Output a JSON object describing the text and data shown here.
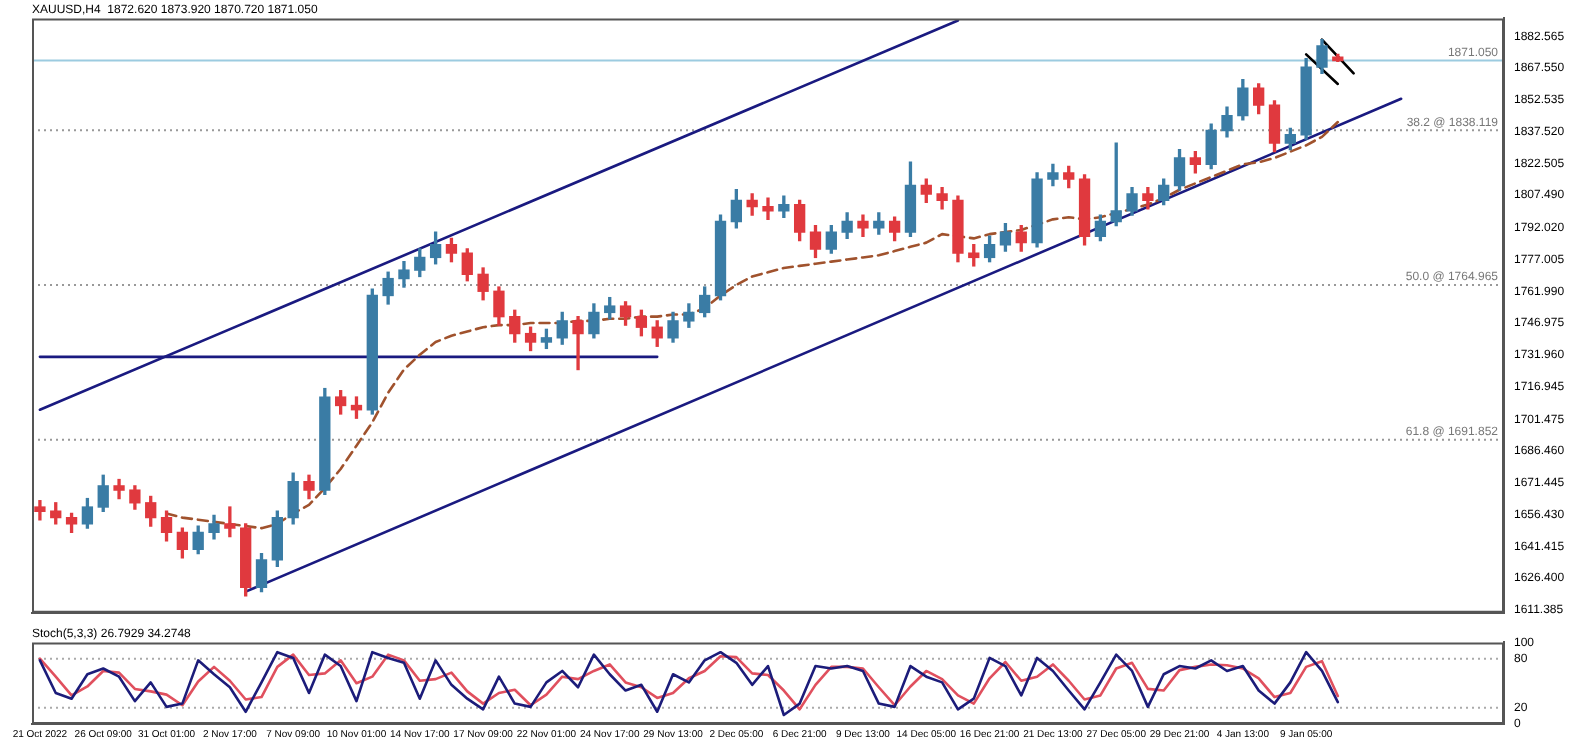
{
  "chart_data": [
    {
      "type": "candlestick",
      "title": "XAUUSD,H4  1872.620 1873.920 1870.720 1871.050",
      "categories": [
        null,
        null,
        null,
        null,
        null,
        null,
        null,
        null,
        null,
        null,
        null,
        null,
        null,
        null,
        null,
        null,
        null,
        null,
        null,
        null,
        null,
        null,
        null,
        null,
        null,
        null,
        null,
        null,
        null,
        null,
        null,
        null,
        null,
        null,
        null,
        null,
        null,
        null,
        null,
        null,
        null,
        null,
        null,
        null,
        null,
        null,
        null,
        null,
        null,
        null,
        null,
        null,
        null,
        null,
        null,
        null,
        null,
        null,
        null,
        null,
        null,
        null,
        null,
        null,
        null,
        null,
        null,
        null,
        null,
        null,
        null,
        null,
        null,
        null,
        null,
        null,
        null,
        null,
        null,
        null,
        null,
        null,
        null,
        null,
        null,
        null,
        null,
        null,
        null,
        null,
        null,
        null,
        null
      ],
      "ohlc": [
        [
          1660,
          1663,
          1654,
          1658
        ],
        [
          1658,
          1662,
          1652,
          1655
        ],
        [
          1655,
          1657,
          1648,
          1652
        ],
        [
          1652,
          1664,
          1650,
          1660
        ],
        [
          1660,
          1675,
          1658,
          1670
        ],
        [
          1670,
          1673,
          1664,
          1668
        ],
        [
          1668,
          1670,
          1659,
          1662
        ],
        [
          1662,
          1665,
          1651,
          1655
        ],
        [
          1655,
          1658,
          1644,
          1648
        ],
        [
          1648,
          1650,
          1636,
          1640
        ],
        [
          1640,
          1651,
          1638,
          1648
        ],
        [
          1648,
          1656,
          1645,
          1652
        ],
        [
          1652,
          1660,
          1646,
          1650
        ],
        [
          1650,
          1652,
          1618,
          1622
        ],
        [
          1622,
          1638,
          1620,
          1635
        ],
        [
          1635,
          1658,
          1632,
          1655
        ],
        [
          1655,
          1676,
          1652,
          1672
        ],
        [
          1672,
          1675,
          1664,
          1668
        ],
        [
          1668,
          1716,
          1666,
          1712
        ],
        [
          1712,
          1715,
          1704,
          1708
        ],
        [
          1708,
          1712,
          1702,
          1706
        ],
        [
          1706,
          1763,
          1704,
          1760
        ],
        [
          1760,
          1771,
          1756,
          1768
        ],
        [
          1768,
          1776,
          1764,
          1772
        ],
        [
          1772,
          1782,
          1769,
          1778
        ],
        [
          1778,
          1790,
          1775,
          1784
        ],
        [
          1784,
          1787,
          1776,
          1780
        ],
        [
          1780,
          1782,
          1767,
          1770
        ],
        [
          1770,
          1773,
          1758,
          1762
        ],
        [
          1762,
          1764,
          1746,
          1750
        ],
        [
          1750,
          1753,
          1738,
          1742
        ],
        [
          1742,
          1745,
          1734,
          1738
        ],
        [
          1738,
          1744,
          1735,
          1740
        ],
        [
          1740,
          1752,
          1737,
          1748
        ],
        [
          1748,
          1750,
          1725,
          1742
        ],
        [
          1742,
          1756,
          1740,
          1752
        ],
        [
          1752,
          1759,
          1749,
          1755
        ],
        [
          1755,
          1757,
          1746,
          1750
        ],
        [
          1750,
          1753,
          1741,
          1745
        ],
        [
          1745,
          1748,
          1736,
          1740
        ],
        [
          1740,
          1752,
          1738,
          1748
        ],
        [
          1748,
          1756,
          1745,
          1752
        ],
        [
          1752,
          1764,
          1750,
          1760
        ],
        [
          1760,
          1798,
          1758,
          1795
        ],
        [
          1795,
          1810,
          1792,
          1805
        ],
        [
          1805,
          1808,
          1798,
          1802
        ],
        [
          1802,
          1806,
          1796,
          1800
        ],
        [
          1800,
          1807,
          1797,
          1803
        ],
        [
          1803,
          1805,
          1786,
          1790
        ],
        [
          1790,
          1793,
          1778,
          1782
        ],
        [
          1782,
          1793,
          1780,
          1790
        ],
        [
          1790,
          1799,
          1787,
          1795
        ],
        [
          1795,
          1798,
          1788,
          1792
        ],
        [
          1792,
          1799,
          1789,
          1795
        ],
        [
          1795,
          1797,
          1786,
          1790
        ],
        [
          1790,
          1823,
          1788,
          1812
        ],
        [
          1812,
          1815,
          1804,
          1808
        ],
        [
          1808,
          1811,
          1801,
          1805
        ],
        [
          1805,
          1807,
          1776,
          1780
        ],
        [
          1780,
          1784,
          1774,
          1778
        ],
        [
          1778,
          1788,
          1776,
          1784
        ],
        [
          1784,
          1794,
          1781,
          1790
        ],
        [
          1790,
          1793,
          1781,
          1785
        ],
        [
          1785,
          1818,
          1783,
          1815
        ],
        [
          1815,
          1822,
          1812,
          1818
        ],
        [
          1818,
          1821,
          1811,
          1815
        ],
        [
          1815,
          1817,
          1784,
          1788
        ],
        [
          1788,
          1798,
          1786,
          1795
        ],
        [
          1795,
          1832,
          1793,
          1800
        ],
        [
          1800,
          1811,
          1798,
          1808
        ],
        [
          1808,
          1811,
          1801,
          1805
        ],
        [
          1805,
          1815,
          1803,
          1812
        ],
        [
          1812,
          1829,
          1810,
          1825
        ],
        [
          1825,
          1828,
          1818,
          1822
        ],
        [
          1822,
          1841,
          1820,
          1838
        ],
        [
          1838,
          1849,
          1835,
          1845
        ],
        [
          1845,
          1862,
          1843,
          1858
        ],
        [
          1858,
          1860,
          1846,
          1850
        ],
        [
          1850,
          1852,
          1828,
          1832
        ],
        [
          1832,
          1839,
          1829,
          1836
        ],
        [
          1836,
          1872,
          1834,
          1868
        ],
        [
          1868,
          1881,
          1865,
          1878
        ],
        [
          1872.62,
          1873.92,
          1870.72,
          1871.05
        ],
        null,
        null,
        null,
        null,
        null,
        null,
        null,
        null,
        null,
        null
      ],
      "colors": [
        "#e0393e",
        "#e0393e",
        "#e0393e",
        "#3a7ca5",
        "#3a7ca5",
        "#e0393e",
        "#e0393e",
        "#e0393e",
        "#e0393e",
        "#e0393e",
        "#3a7ca5",
        "#3a7ca5",
        "#e0393e",
        "#e0393e",
        "#3a7ca5",
        "#3a7ca5",
        "#3a7ca5",
        "#e0393e",
        "#3a7ca5",
        "#e0393e",
        "#e0393e",
        "#3a7ca5",
        "#3a7ca5",
        "#3a7ca5",
        "#3a7ca5",
        "#3a7ca5",
        "#e0393e",
        "#e0393e",
        "#e0393e",
        "#e0393e",
        "#e0393e",
        "#e0393e",
        "#3a7ca5",
        "#3a7ca5",
        "#e0393e",
        "#3a7ca5",
        "#3a7ca5",
        "#e0393e",
        "#e0393e",
        "#e0393e",
        "#3a7ca5",
        "#3a7ca5",
        "#3a7ca5",
        "#3a7ca5",
        "#3a7ca5",
        "#e0393e",
        "#e0393e",
        "#3a7ca5",
        "#e0393e",
        "#e0393e",
        "#3a7ca5",
        "#3a7ca5",
        "#e0393e",
        "#3a7ca5",
        "#e0393e",
        "#3a7ca5",
        "#e0393e",
        "#e0393e",
        "#e0393e",
        "#e0393e",
        "#3a7ca5",
        "#3a7ca5",
        "#e0393e",
        "#3a7ca5",
        "#3a7ca5",
        "#e0393e",
        "#e0393e",
        "#3a7ca5",
        "#3a7ca5",
        "#3a7ca5",
        "#e0393e",
        "#3a7ca5",
        "#3a7ca5",
        "#e0393e",
        "#3a7ca5",
        "#3a7ca5",
        "#3a7ca5",
        "#e0393e",
        "#e0393e",
        "#3a7ca5",
        "#3a7ca5",
        "#3a7ca5",
        "#e0393e",
        null,
        null,
        null,
        null,
        null,
        null,
        null,
        null,
        null,
        null
      ],
      "series": [
        {
          "type": "line",
          "color": "#a0522d",
          "line_style": "dashed",
          "values": [
            null,
            null,
            null,
            null,
            null,
            null,
            null,
            null,
            1657,
            1655,
            1654,
            1653,
            1652,
            1651,
            1650,
            1652,
            1657,
            1661,
            1669,
            1678,
            1689,
            1700,
            1714,
            1725,
            1732,
            1738,
            1741,
            1743,
            1745,
            1746,
            1746,
            1747,
            1747,
            1747,
            1748,
            1748,
            1749,
            1749,
            1750,
            1750,
            1751,
            1751,
            1754,
            1760,
            1765,
            1769,
            1771,
            1773,
            1774,
            1775,
            1776,
            1777,
            1778,
            1779,
            1781,
            1783,
            1785,
            1789,
            1788,
            1787,
            1789,
            1790,
            1791,
            null,
            1796,
            1797,
            1796,
            1797,
            1799,
            1801,
            1803,
            1806,
            1810,
            1813,
            1816,
            1819,
            1822,
            1823,
            1825,
            1828,
            1831,
            1835,
            1842,
            null,
            null,
            null,
            null,
            null,
            null,
            null,
            null,
            null,
            null
          ]
        },
        {
          "type": "line",
          "color": "#1a1a80",
          "values": [
            1706,
            null,
            null,
            null,
            null,
            null,
            null,
            null,
            null,
            null,
            null,
            null,
            null,
            null,
            null,
            null,
            null,
            null,
            null,
            null,
            null,
            null,
            null,
            null,
            null,
            null,
            null,
            null,
            null,
            null,
            null,
            null,
            null,
            null,
            null,
            null,
            null,
            null,
            null,
            null,
            null,
            null,
            null,
            null,
            null,
            null,
            null,
            null,
            null,
            null,
            null,
            null,
            null,
            null,
            null,
            null,
            null,
            null,
            1890,
            null,
            null,
            null,
            null,
            null,
            null,
            null,
            null,
            null,
            null,
            null,
            null,
            null,
            null,
            null,
            null,
            null,
            null,
            null,
            null,
            null,
            null,
            null,
            null,
            null,
            null,
            null,
            null,
            null,
            null,
            null,
            null,
            null,
            null
          ]
        },
        {
          "type": "line",
          "color": "#1a1a80",
          "values": [
            null,
            null,
            null,
            null,
            null,
            null,
            null,
            null,
            null,
            null,
            null,
            null,
            null,
            1620,
            null,
            null,
            null,
            null,
            null,
            null,
            null,
            null,
            null,
            null,
            null,
            null,
            null,
            null,
            null,
            null,
            null,
            null,
            null,
            null,
            null,
            null,
            null,
            null,
            null,
            null,
            null,
            null,
            null,
            null,
            null,
            null,
            null,
            null,
            null,
            null,
            null,
            null,
            null,
            null,
            null,
            null,
            null,
            null,
            null,
            null,
            null,
            null,
            null,
            null,
            null,
            null,
            null,
            null,
            null,
            null,
            null,
            null,
            null,
            null,
            null,
            null,
            null,
            null,
            null,
            null,
            null,
            null,
            null,
            null,
            null,
            null,
            1853,
            null,
            null,
            null,
            null,
            null,
            null
          ]
        },
        {
          "type": "line",
          "color": "#1a1a80",
          "values": [
            1731,
            null,
            null,
            null,
            null,
            null,
            null,
            null,
            null,
            null,
            null,
            null,
            null,
            null,
            null,
            null,
            null,
            null,
            null,
            null,
            null,
            null,
            null,
            null,
            null,
            null,
            null,
            null,
            null,
            null,
            null,
            null,
            null,
            null,
            null,
            null,
            null,
            null,
            null,
            1731,
            null,
            null,
            null,
            null,
            null,
            null,
            null,
            null,
            null,
            null,
            null,
            null,
            null,
            null,
            null,
            null,
            null,
            null,
            null,
            null,
            null,
            null,
            null,
            null,
            null,
            null,
            null,
            null,
            null,
            null,
            null,
            null,
            null,
            null,
            null,
            null,
            null,
            null,
            null,
            null,
            null,
            null,
            null,
            null,
            null,
            null,
            null,
            null,
            null,
            null,
            null,
            null,
            null
          ]
        },
        {
          "type": "line",
          "color": "#000000",
          "values": [
            null,
            null,
            null,
            null,
            null,
            null,
            null,
            null,
            null,
            null,
            null,
            null,
            null,
            null,
            null,
            null,
            null,
            null,
            null,
            null,
            null,
            null,
            null,
            null,
            null,
            null,
            null,
            null,
            null,
            null,
            null,
            null,
            null,
            null,
            null,
            null,
            null,
            null,
            null,
            null,
            null,
            null,
            null,
            null,
            null,
            null,
            null,
            null,
            null,
            null,
            null,
            null,
            null,
            null,
            null,
            null,
            null,
            null,
            null,
            null,
            null,
            null,
            null,
            null,
            null,
            null,
            null,
            null,
            null,
            null,
            null,
            null,
            null,
            null,
            null,
            null,
            null,
            null,
            null,
            null,
            null,
            1881,
            null,
            1865,
            null,
            null,
            null,
            null,
            null,
            null,
            null,
            null,
            null
          ]
        },
        {
          "type": "line",
          "color": "#000000",
          "values": [
            null,
            null,
            null,
            null,
            null,
            null,
            null,
            null,
            null,
            null,
            null,
            null,
            null,
            null,
            null,
            null,
            null,
            null,
            null,
            null,
            null,
            null,
            null,
            null,
            null,
            null,
            null,
            null,
            null,
            null,
            null,
            null,
            null,
            null,
            null,
            null,
            null,
            null,
            null,
            null,
            null,
            null,
            null,
            null,
            null,
            null,
            null,
            null,
            null,
            null,
            null,
            null,
            null,
            null,
            null,
            null,
            null,
            null,
            null,
            null,
            null,
            null,
            null,
            null,
            null,
            null,
            null,
            null,
            null,
            null,
            null,
            null,
            null,
            null,
            null,
            null,
            null,
            null,
            null,
            null,
            1874,
            null,
            1860,
            null,
            null,
            null,
            null,
            null,
            null,
            null,
            null,
            null,
            null
          ]
        }
      ],
      "ylim": [
        1610,
        1891
      ],
      "yticks": [
        1611.385,
        {
          "value": 1626.4,
          "label": "1626.400"
        },
        1641.415,
        {
          "value": 1656.43,
          "label": "1656.430"
        },
        1671.445,
        {
          "value": 1686.46,
          "label": "1686.460"
        },
        1701.475,
        1716.945,
        {
          "value": 1731.96,
          "label": "1731.960"
        },
        1746.975,
        {
          "value": 1761.99,
          "label": "1761.990"
        },
        1777.005,
        {
          "value": 1792.02,
          "label": "1792.020"
        },
        {
          "value": 1807.49,
          "label": "1807.490"
        },
        1822.505,
        {
          "value": 1837.52,
          "label": "1837.520"
        },
        1852.535,
        {
          "value": 1867.55,
          "label": "1867.550"
        },
        1882.565
      ],
      "ref_lines": [
        {
          "axis": "y",
          "value": 1871.05,
          "label": "1871.050",
          "color": "#9ccbe0"
        },
        {
          "axis": "y",
          "value": 1838.119,
          "label": "38.2 @ 1838.119",
          "color": "#999999",
          "line_style": "dotted"
        },
        {
          "axis": "y",
          "value": 1764.965,
          "label": "50.0 @ 1764.965",
          "color": "#999999",
          "line_style": "dotted"
        },
        {
          "axis": "y",
          "value": 1691.852,
          "label": "61.8 @ 1691.852",
          "color": "#999999",
          "line_style": "dotted"
        }
      ],
      "tick_labels": "y"
    },
    {
      "type": "line",
      "title": "Stoch(5,3,3) 26.7929 34.2748",
      "categories": [
        "21 Oct 2022",
        null,
        null,
        null,
        "26 Oct 09:00",
        null,
        null,
        null,
        "31 Oct 01:00",
        null,
        null,
        null,
        "2 Nov 17:00",
        null,
        null,
        null,
        "7 Nov 09:00",
        null,
        null,
        null,
        "10 Nov 01:00",
        null,
        null,
        null,
        "14 Nov 17:00",
        null,
        null,
        null,
        "17 Nov 09:00",
        null,
        null,
        null,
        "22 Nov 01:00",
        null,
        null,
        null,
        "24 Nov 17:00",
        null,
        null,
        null,
        "29 Nov 13:00",
        null,
        null,
        null,
        "2 Dec 05:00",
        null,
        null,
        null,
        "6 Dec 21:00",
        null,
        null,
        null,
        "9 Dec 13:00",
        null,
        null,
        null,
        "14 Dec 05:00",
        null,
        null,
        null,
        "16 Dec 21:00",
        null,
        null,
        null,
        "21 Dec 13:00",
        null,
        null,
        null,
        "27 Dec 05:00",
        null,
        null,
        null,
        "29 Dec 21:00",
        null,
        null,
        null,
        "4 Jan 13:00",
        null,
        null,
        null,
        "9 Jan 05:00",
        null,
        null,
        null,
        null,
        null,
        null,
        null,
        null,
        null,
        null,
        null,
        null
      ],
      "series": [
        {
          "color": "#1c1c7a",
          "values": [
            78,
            38,
            31,
            61,
            68,
            58,
            28,
            51,
            21,
            25,
            78,
            61,
            45,
            15,
            51,
            88,
            81,
            38,
            85,
            71,
            28,
            88,
            81,
            75,
            31,
            78,
            48,
            31,
            18,
            58,
            25,
            21,
            51,
            65,
            45,
            85,
            61,
            41,
            48,
            15,
            61,
            51,
            78,
            88,
            75,
            48,
            71,
            11,
            25,
            71,
            68,
            71,
            65,
            25,
            21,
            71,
            58,
            51,
            18,
            31,
            81,
            71,
            35,
            81,
            65,
            41,
            18,
            51,
            85,
            65,
            21,
            61,
            71,
            68,
            78,
            65,
            71,
            41,
            25,
            51,
            88,
            65,
            26.7929,
            null,
            null,
            null,
            null,
            null,
            null,
            null,
            null,
            null,
            null
          ]
        },
        {
          "color": "#e0505e",
          "values": [
            80,
            58,
            35,
            46,
            65,
            63,
            43,
            40,
            36,
            23,
            52,
            70,
            53,
            30,
            33,
            70,
            85,
            60,
            62,
            78,
            50,
            58,
            85,
            78,
            53,
            55,
            63,
            40,
            25,
            38,
            42,
            23,
            36,
            58,
            55,
            65,
            73,
            51,
            45,
            32,
            38,
            56,
            65,
            83,
            82,
            62,
            60,
            41,
            18,
            48,
            70,
            70,
            68,
            45,
            23,
            46,
            65,
            55,
            35,
            25,
            56,
            76,
            53,
            58,
            73,
            53,
            30,
            35,
            68,
            75,
            43,
            41,
            66,
            70,
            73,
            72,
            68,
            56,
            33,
            38,
            70,
            77,
            34.2748,
            null,
            null,
            null,
            null,
            null,
            null,
            null,
            null,
            null,
            null
          ]
        }
      ],
      "ylim": [
        0,
        100
      ],
      "yticks": [
        0,
        20,
        80,
        100
      ],
      "ref_lines": [
        {
          "axis": "y",
          "value": 80,
          "color": "#aaaaaa",
          "line_style": "dotted"
        },
        {
          "axis": "y",
          "value": 20,
          "color": "#aaaaaa",
          "line_style": "dotted"
        }
      ]
    }
  ]
}
